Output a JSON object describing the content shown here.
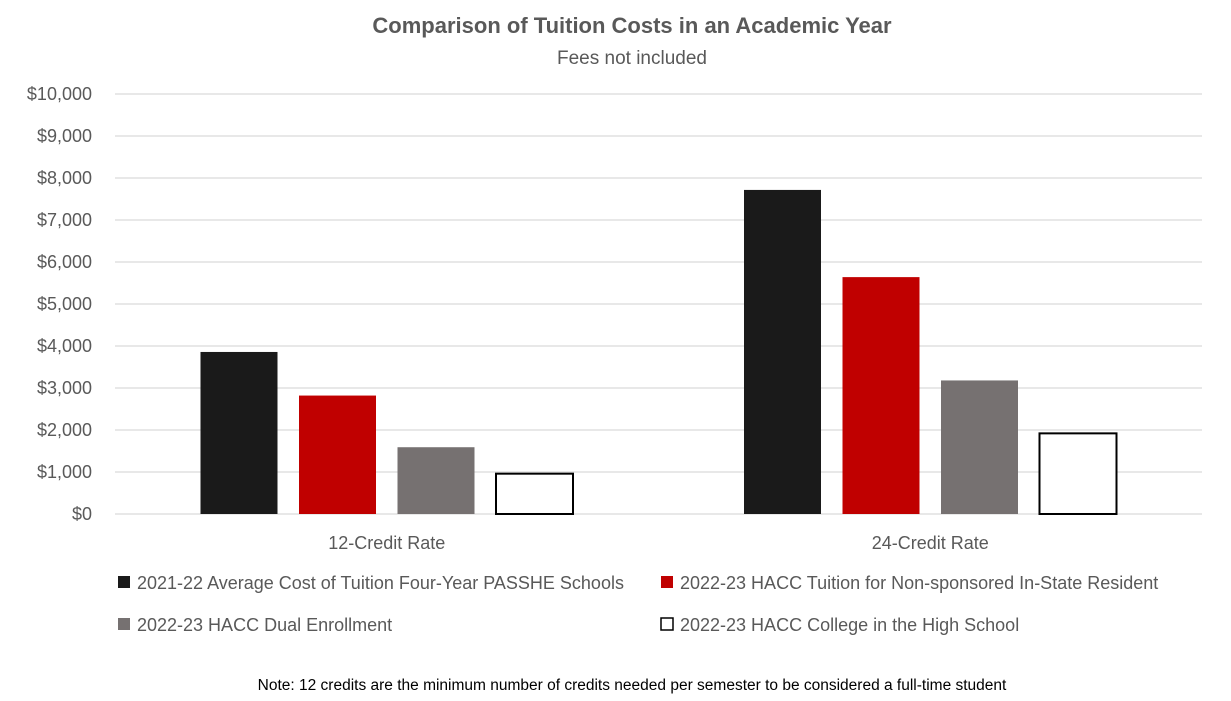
{
  "chart_data": {
    "type": "bar",
    "title": "Comparison of Tuition Costs in an Academic Year",
    "subtitle": "Fees not included",
    "xlabel": "",
    "ylabel": "",
    "categories": [
      "12-Credit Rate",
      "24-Credit Rate"
    ],
    "series": [
      {
        "name": "2021-22 Average Cost of Tuition Four-Year PASSHE Schools",
        "color": "#1a1a1a",
        "values": [
          3858,
          7716
        ]
      },
      {
        "name": "2022-23 HACC Tuition for Non-sponsored In-State Resident",
        "color": "#c00000",
        "values": [
          2820,
          5640
        ]
      },
      {
        "name": "2022-23 HACC Dual Enrollment",
        "color": "#767171",
        "values": [
          1590,
          3180
        ]
      },
      {
        "name": "2022-23 HACC College in the High School",
        "color": "#ffffff",
        "values": [
          960,
          1920
        ]
      }
    ],
    "ylim": [
      0,
      10000
    ],
    "yticks": [
      0,
      1000,
      2000,
      3000,
      4000,
      5000,
      6000,
      7000,
      8000,
      9000,
      10000
    ],
    "ytick_labels": [
      "$0",
      "$1,000",
      "$2,000",
      "$3,000",
      "$4,000",
      "$5,000",
      "$6,000",
      "$7,000",
      "$8,000",
      "$9,000",
      "$10,000"
    ],
    "grid": true,
    "legend_position": "bottom",
    "note": "Note: 12 credits are the minimum number of credits needed per semester to be considered a full-time student"
  }
}
